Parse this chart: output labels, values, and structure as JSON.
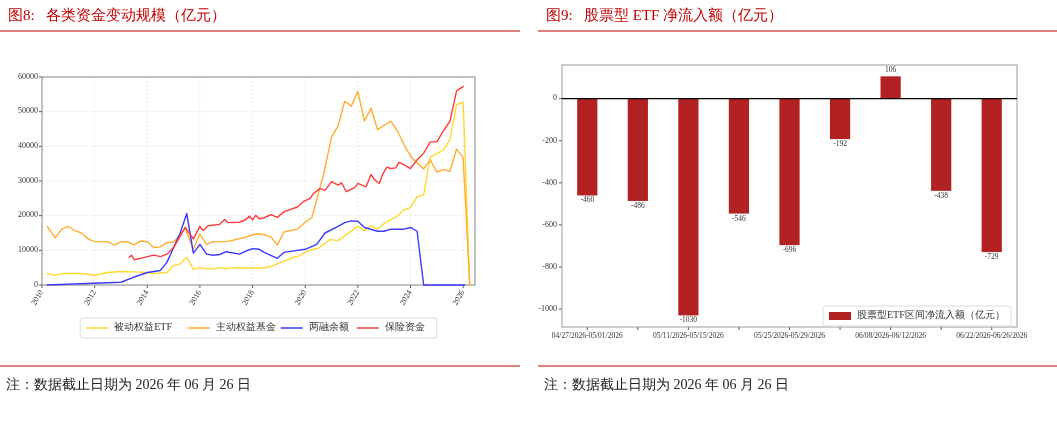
{
  "chart_data": [
    {
      "type": "line",
      "title": "图8:   各类资金变动规模（亿元）",
      "xlim": [
        2010,
        2026.45
      ],
      "xticks": [
        2010,
        2012,
        2014,
        2016,
        2018,
        2020,
        2022,
        2024,
        2026
      ],
      "ylim": [
        0,
        60000
      ],
      "yticks": [
        0,
        10000,
        20000,
        30000,
        40000,
        50000,
        60000
      ],
      "grid": true,
      "legend": "bottom",
      "annotations": [
        "注：数据截止日期为 2026 年 06 月 26 日"
      ],
      "series": [
        {
          "name": "被动权益ETF",
          "color": "#ffd92f",
          "x": [
            2010.2,
            2010.5,
            2010.75,
            2011.5,
            2012,
            2012.5,
            2013,
            2013.5,
            2014,
            2014.25,
            2014.75,
            2015,
            2015.25,
            2015.5,
            2015.75,
            2016,
            2016.25,
            2016.5,
            2016.75,
            2017,
            2017.25,
            2017.5,
            2018.25,
            2018.44,
            2018.7,
            2018.94,
            2019.56,
            2019.7,
            2020,
            2020.2,
            2020.5,
            2020.7,
            2020.94,
            2021.25,
            2022,
            2022.25,
            2022.5,
            2022.75,
            2023,
            2023.5,
            2023.75,
            2024,
            2024.25,
            2024.5,
            2024.75,
            2025.25,
            2025.5,
            2025.75,
            2026,
            2026.25
          ],
          "values": [
            3300,
            2800,
            3300,
            3300,
            2800,
            3600,
            3900,
            3800,
            3600,
            3300,
            3600,
            5600,
            6100,
            8000,
            4500,
            5000,
            4700,
            4600,
            5000,
            4700,
            5000,
            4900,
            4900,
            4900,
            5400,
            6100,
            8000,
            8200,
            9400,
            10100,
            10600,
            11700,
            13100,
            12800,
            16900,
            15700,
            17100,
            16100,
            17800,
            19900,
            21700,
            22300,
            25500,
            26000,
            36900,
            38900,
            42000,
            52000,
            52700,
            0
          ]
        },
        {
          "name": "主动权益基金",
          "color": "#ffad33",
          "x": [
            2010.2,
            2010.5,
            2010.75,
            2011,
            2011.25,
            2011.5,
            2011.75,
            2012,
            2012.5,
            2012.75,
            2013,
            2013.25,
            2013.5,
            2013.75,
            2014,
            2014.25,
            2014.5,
            2014.75,
            2015,
            2015.25,
            2015.44,
            2015.75,
            2016,
            2016.25,
            2016.5,
            2017,
            2017.25,
            2017.75,
            2018,
            2018.25,
            2018.44,
            2018.7,
            2018.94,
            2019.19,
            2019.7,
            2020,
            2020.25,
            2020.7,
            2021,
            2021.25,
            2021.5,
            2021.75,
            2022,
            2022.25,
            2022.5,
            2022.75,
            2023.25,
            2023.5,
            2023.8,
            2024.06,
            2024.5,
            2024.75,
            2025,
            2025.25,
            2025.5,
            2025.75,
            2026,
            2026.25
          ],
          "values": [
            16900,
            13600,
            16100,
            16900,
            15700,
            15000,
            13300,
            12500,
            12500,
            11500,
            12500,
            12400,
            11600,
            12700,
            12500,
            10800,
            11000,
            12200,
            12400,
            14500,
            16400,
            10300,
            14700,
            11700,
            12500,
            12500,
            12900,
            13800,
            14500,
            14800,
            14500,
            13900,
            11500,
            15300,
            16100,
            18100,
            19400,
            31900,
            42700,
            45900,
            53000,
            51600,
            55800,
            47300,
            51000,
            44800,
            47300,
            44500,
            39800,
            36600,
            33500,
            36100,
            32600,
            33300,
            32800,
            39200,
            36800,
            0
          ]
        },
        {
          "name": "两融余额",
          "color": "#3b3bff",
          "x": [
            2010.2,
            2013,
            2013.5,
            2014,
            2014.5,
            2014.75,
            2015,
            2015.25,
            2015.5,
            2015.75,
            2016,
            2016.25,
            2016.5,
            2016.75,
            2017,
            2017.5,
            2017.75,
            2018,
            2018.25,
            2018.44,
            2018.94,
            2019.19,
            2020,
            2020.44,
            2020.75,
            2021.25,
            2021.5,
            2021.75,
            2022,
            2022.25,
            2022.75,
            2023,
            2023.25,
            2023.75,
            2024,
            2024.25,
            2024.5,
            2026.06
          ],
          "values": [
            0,
            800,
            2300,
            3600,
            4200,
            6600,
            10800,
            15000,
            20600,
            9200,
            11700,
            8900,
            8600,
            8800,
            9600,
            8900,
            9800,
            10500,
            10300,
            9400,
            7700,
            9400,
            10300,
            11700,
            15000,
            16900,
            18000,
            18500,
            18400,
            16600,
            15500,
            15500,
            16100,
            16100,
            16600,
            15500,
            0,
            0
          ]
        },
        {
          "name": "保险资金",
          "color": "#ff3b3b",
          "x": [
            2013.31,
            2013.4,
            2013.5,
            2013.75,
            2014,
            2014.25,
            2014.5,
            2014.75,
            2015,
            2015.25,
            2015.44,
            2015.75,
            2016,
            2016.12,
            2016.31,
            2016.75,
            2016.94,
            2017.06,
            2017.5,
            2017.75,
            2017.88,
            2018,
            2018.12,
            2018.25,
            2018.44,
            2018.7,
            2018.94,
            2019.19,
            2019.7,
            2019.94,
            2020.19,
            2020.31,
            2020.56,
            2020.75,
            2021,
            2021.25,
            2021.38,
            2021.56,
            2021.88,
            2022,
            2022.31,
            2022.5,
            2022.62,
            2022.81,
            2022.94,
            2023.1,
            2023.25,
            2023.44,
            2023.56,
            2023.75,
            2024,
            2024.25,
            2024.5,
            2024.75,
            2025,
            2025.25,
            2025.5,
            2025.75,
            2026
          ],
          "values": [
            8000,
            8600,
            7300,
            7700,
            8200,
            8600,
            8200,
            8900,
            10800,
            14100,
            16600,
            13300,
            16900,
            15700,
            17100,
            17500,
            18900,
            18000,
            18100,
            18900,
            19900,
            18800,
            20100,
            19100,
            19400,
            20300,
            19500,
            21100,
            22500,
            24100,
            25000,
            26400,
            27800,
            27300,
            29800,
            28800,
            29500,
            26900,
            28100,
            29300,
            28300,
            31900,
            30500,
            29300,
            31900,
            34000,
            33600,
            33800,
            35400,
            34700,
            33600,
            36100,
            38000,
            41300,
            41300,
            44500,
            47300,
            56000,
            57200
          ]
        }
      ]
    },
    {
      "type": "bar",
      "title": "图9:   股票型 ETF 净流入额（亿元）",
      "categories": [
        "04/27/2026-05/01/2026",
        null,
        "05/11/2026-05/15/2026",
        null,
        "05/25/2026-05/29/2026",
        null,
        "06/08/2026-06/12/2026",
        null,
        "06/22/2026-06/26/2026"
      ],
      "ylim": [
        -1085,
        160
      ],
      "yticks": [
        -1000,
        -800,
        -600,
        -400,
        -200,
        0
      ],
      "data_labels": true,
      "legend": "bottom right",
      "ref_lines": [
        {
          "axis": "y",
          "value": 0,
          "color": "#000000"
        }
      ],
      "annotations": [
        "注：数据截止日期为 2026 年 06 月 26 日"
      ],
      "series": [
        {
          "name": "股票型ETF区间净流入额（亿元）",
          "color": "#b22222",
          "values": [
            -460,
            -486,
            -1030,
            -546,
            -696,
            -192,
            106,
            -438,
            -729
          ]
        }
      ]
    }
  ]
}
